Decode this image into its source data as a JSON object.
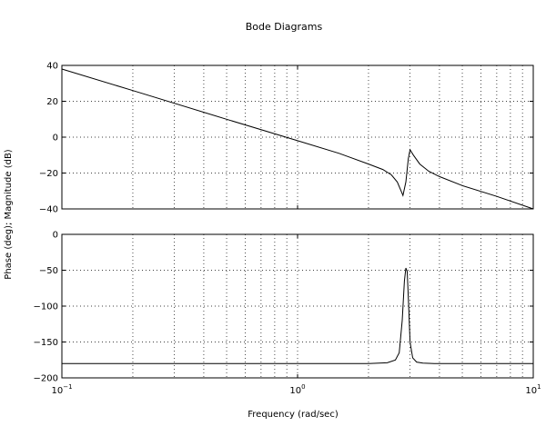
{
  "chart_data": {
    "type": "line",
    "title": "Bode Diagrams",
    "xlabel": "Frequency (rad/sec)",
    "ylabel": "Phase (deg); Magnitude (dB)",
    "xscale": "log",
    "xlim": [
      0.1,
      10
    ],
    "x_ticks": [
      {
        "base": "10",
        "exp": "−1",
        "value": 0.1
      },
      {
        "base": "10",
        "exp": "0",
        "value": 1
      },
      {
        "base": "10",
        "exp": "1",
        "value": 10
      }
    ],
    "grid": true,
    "subplots": [
      {
        "name": "magnitude",
        "ylim": [
          -40,
          40
        ],
        "y_ticks": [
          {
            "value": 40,
            "label": "40"
          },
          {
            "value": 20,
            "label": "20"
          },
          {
            "value": 0,
            "label": "0"
          },
          {
            "value": -20,
            "label": "−20"
          },
          {
            "value": -40,
            "label": "−40"
          }
        ],
        "x": [
          0.1,
          0.2,
          0.5,
          1.0,
          1.5,
          2.0,
          2.3,
          2.5,
          2.65,
          2.75,
          2.8,
          2.88,
          2.95,
          3.0,
          3.1,
          3.3,
          3.6,
          4.0,
          5.0,
          7.0,
          10.0
        ],
        "y": [
          38,
          26,
          10,
          -2,
          -9,
          -15,
          -18,
          -21,
          -25,
          -30,
          -32.5,
          -25,
          -12,
          -7,
          -10,
          -15,
          -19,
          -22,
          -27,
          -33,
          -40
        ]
      },
      {
        "name": "phase",
        "ylim": [
          -200,
          0
        ],
        "y_ticks": [
          {
            "value": 0,
            "label": "0"
          },
          {
            "value": -50,
            "label": "−50"
          },
          {
            "value": -100,
            "label": "−100"
          },
          {
            "value": -150,
            "label": "−150"
          },
          {
            "value": -200,
            "label": "−200"
          }
        ],
        "x": [
          0.1,
          1.0,
          2.0,
          2.4,
          2.6,
          2.7,
          2.78,
          2.84,
          2.88,
          2.92,
          2.96,
          3.0,
          3.08,
          3.2,
          3.4,
          3.8,
          5.0,
          10.0
        ],
        "y": [
          -180,
          -180,
          -180,
          -179,
          -175,
          -165,
          -120,
          -65,
          -47,
          -52,
          -100,
          -150,
          -172,
          -178,
          -179.5,
          -180,
          -180,
          -180
        ]
      }
    ]
  }
}
